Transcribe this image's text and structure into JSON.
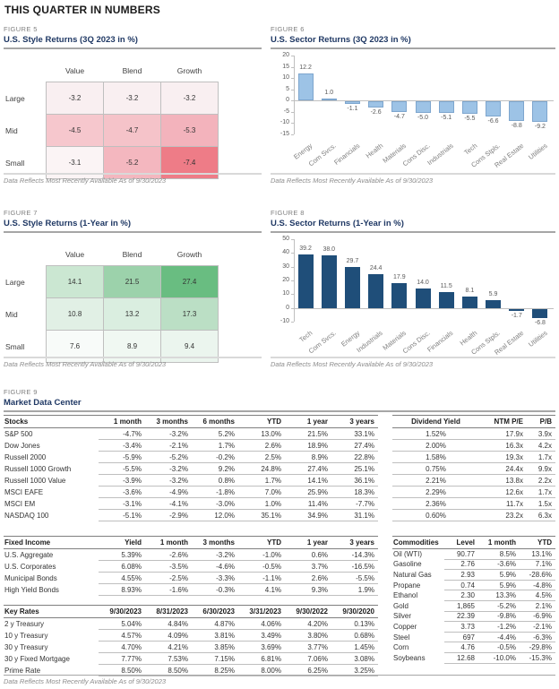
{
  "page": {
    "title": "THIS QUARTER IN NUMBERS"
  },
  "colors": {
    "title_navy": "#1F3864",
    "sector_3q_bar": "#9DC3E6",
    "sector_1y_bar": "#1F4E79",
    "heat_red_max": "#EE7C87",
    "heat_green_max": "#69BD81"
  },
  "figure5": {
    "label": "FIGURE 5",
    "title": "U.S. Style Returns (3Q 2023 in %)",
    "footnote": "Data Reflects Most Recently Available As of 9/30/2023",
    "grid": {
      "col_headers": [
        "Value",
        "Blend",
        "Growth"
      ],
      "row_headers": [
        "Large",
        "Mid",
        "Small"
      ],
      "rows": [
        [
          {
            "v": "-3.2",
            "color": "#F9EFF1"
          },
          {
            "v": "-3.2",
            "color": "#F9EFF1"
          },
          {
            "v": "-3.2",
            "color": "#F9EFF1"
          }
        ],
        [
          {
            "v": "-4.5",
            "color": "#F6C7CD"
          },
          {
            "v": "-4.7",
            "color": "#F5C3C9"
          },
          {
            "v": "-5.3",
            "color": "#F3B3BC"
          }
        ],
        [
          {
            "v": "-3.1",
            "color": "#FBF4F5"
          },
          {
            "v": "-5.2",
            "color": "#F4B7BF"
          },
          {
            "v": "-7.4",
            "color": "#EE7C87"
          }
        ]
      ]
    }
  },
  "figure6": {
    "label": "FIGURE 6",
    "title": "U.S. Sector Returns (3Q 2023 in %)",
    "footnote": "Data Reflects Most Recently Available As of 9/30/2023"
  },
  "figure7": {
    "label": "FIGURE 7",
    "title": "U.S. Style Returns (1-Year in %)",
    "footnote": "Data Reflects Most Recently Available As of 9/30/2023",
    "grid": {
      "col_headers": [
        "Value",
        "Blend",
        "Growth"
      ],
      "row_headers": [
        "Large",
        "Mid",
        "Small"
      ],
      "rows": [
        [
          {
            "v": "14.1",
            "color": "#CBE7D2"
          },
          {
            "v": "21.5",
            "color": "#9CD2AB"
          },
          {
            "v": "27.4",
            "color": "#69BD81"
          }
        ],
        [
          {
            "v": "10.8",
            "color": "#E1F0E5"
          },
          {
            "v": "13.2",
            "color": "#DAEEE0"
          },
          {
            "v": "17.3",
            "color": "#BBDFC5"
          }
        ],
        [
          {
            "v": "7.6",
            "color": "#F8FBF9"
          },
          {
            "v": "8.9",
            "color": "#F0F8F2"
          },
          {
            "v": "9.4",
            "color": "#EBF5EE"
          }
        ]
      ]
    }
  },
  "figure8": {
    "label": "FIGURE 8",
    "title": "U.S. Sector Returns (1-Year in %)",
    "footnote": "Data Reflects Most Recently Available As of 9/30/2023"
  },
  "chart_data": [
    {
      "type": "bar",
      "title": "U.S. Sector Returns (3Q 2023 in %)",
      "categories": [
        "Energy",
        "Com Svcs.",
        "Financials",
        "Health",
        "Materials",
        "Cons Disc.",
        "Industrials",
        "Tech",
        "Cons Stpls.",
        "Real Estate",
        "Utilities"
      ],
      "values": [
        12.2,
        1.0,
        -1.1,
        -2.6,
        -4.7,
        -5.0,
        -5.1,
        -5.5,
        -6.6,
        -8.8,
        -9.2
      ],
      "xlabel": "",
      "ylabel": "",
      "ylim": [
        -15,
        20
      ],
      "yticks": [
        20,
        15,
        10,
        5,
        0,
        -5,
        -10,
        -15
      ],
      "grid": false,
      "legend": "none",
      "bar_color": "#9DC3E6",
      "bar_border": "#7EA6CE"
    },
    {
      "type": "bar",
      "title": "U.S. Sector Returns (1-Year in %)",
      "categories": [
        "Tech",
        "Com Svcs.",
        "Energy",
        "Industrials",
        "Materials",
        "Cons Disc.",
        "Financials",
        "Health",
        "Cons Stpls.",
        "Real Estate",
        "Utilities"
      ],
      "values": [
        39.2,
        38.0,
        29.7,
        24.4,
        17.9,
        14.0,
        11.5,
        8.1,
        5.9,
        -1.7,
        -6.8
      ],
      "xlabel": "",
      "ylabel": "",
      "ylim": [
        -10,
        50
      ],
      "yticks": [
        50,
        40,
        30,
        20,
        10,
        0,
        -10
      ],
      "grid": false,
      "legend": "none",
      "bar_color": "#1F4E79",
      "bar_border": "#1F4E79"
    }
  ],
  "figure9": {
    "label": "FIGURE 9",
    "title": "Market Data Center",
    "footnote": "Data Reflects Most Recently Available As of 9/30/2023",
    "stocks": {
      "headers": [
        "Stocks",
        "1 month",
        "3 months",
        "6 months",
        "YTD",
        "1 year",
        "3 years"
      ],
      "rows": [
        [
          "S&P 500",
          "-4.7%",
          "-3.2%",
          "5.2%",
          "13.0%",
          "21.5%",
          "33.1%"
        ],
        [
          "Dow Jones",
          "-3.4%",
          "-2.1%",
          "1.7%",
          "2.6%",
          "18.9%",
          "27.4%"
        ],
        [
          "Russell 2000",
          "-5.9%",
          "-5.2%",
          "-0.2%",
          "2.5%",
          "8.9%",
          "22.8%"
        ],
        [
          "Russell 1000 Growth",
          "-5.5%",
          "-3.2%",
          "9.2%",
          "24.8%",
          "27.4%",
          "25.1%"
        ],
        [
          "Russell 1000 Value",
          "-3.9%",
          "-3.2%",
          "0.8%",
          "1.7%",
          "14.1%",
          "36.1%"
        ],
        [
          "MSCI EAFE",
          "-3.6%",
          "-4.9%",
          "-1.8%",
          "7.0%",
          "25.9%",
          "18.3%"
        ],
        [
          "MSCI EM",
          "-3.1%",
          "-4.1%",
          "-3.0%",
          "1.0%",
          "11.4%",
          "-7.7%"
        ],
        [
          "NASDAQ 100",
          "-5.1%",
          "-2.9%",
          "12.0%",
          "35.1%",
          "34.9%",
          "31.1%"
        ]
      ]
    },
    "valuation": {
      "headers": [
        "Dividend Yield",
        "NTM P/E",
        "P/B"
      ],
      "rows": [
        [
          "1.52%",
          "17.9x",
          "3.9x"
        ],
        [
          "2.00%",
          "16.3x",
          "4.2x"
        ],
        [
          "1.58%",
          "19.3x",
          "1.7x"
        ],
        [
          "0.75%",
          "24.4x",
          "9.9x"
        ],
        [
          "2.21%",
          "13.8x",
          "2.2x"
        ],
        [
          "2.29%",
          "12.6x",
          "1.7x"
        ],
        [
          "2.36%",
          "11.7x",
          "1.5x"
        ],
        [
          "0.60%",
          "23.2x",
          "6.3x"
        ]
      ]
    },
    "fixed_income": {
      "headers": [
        "Fixed Income",
        "Yield",
        "1 month",
        "3 months",
        "YTD",
        "1 year",
        "3 years"
      ],
      "rows": [
        [
          "U.S. Aggregate",
          "5.39%",
          "-2.6%",
          "-3.2%",
          "-1.0%",
          "0.6%",
          "-14.3%"
        ],
        [
          "U.S. Corporates",
          "6.08%",
          "-3.5%",
          "-4.6%",
          "-0.5%",
          "3.7%",
          "-16.5%"
        ],
        [
          "Municipal Bonds",
          "4.55%",
          "-2.5%",
          "-3.3%",
          "-1.1%",
          "2.6%",
          "-5.5%"
        ],
        [
          "High Yield Bonds",
          "8.93%",
          "-1.6%",
          "-0.3%",
          "4.1%",
          "9.3%",
          "1.9%"
        ]
      ]
    },
    "commodities": {
      "headers": [
        "Commodities",
        "Level",
        "1 month",
        "YTD"
      ],
      "rows": [
        [
          "Oil (WTI)",
          "90.77",
          "8.5%",
          "13.1%"
        ],
        [
          "Gasoline",
          "2.76",
          "-3.6%",
          "7.1%"
        ],
        [
          "Natural Gas",
          "2.93",
          "5.9%",
          "-28.6%"
        ],
        [
          "Propane",
          "0.74",
          "5.9%",
          "-4.8%"
        ],
        [
          "Ethanol",
          "2.30",
          "13.3%",
          "4.5%"
        ],
        [
          "Gold",
          "1,865",
          "-5.2%",
          "2.1%"
        ],
        [
          "Silver",
          "22.39",
          "-9.8%",
          "-6.9%"
        ],
        [
          "Copper",
          "3.73",
          "-1.2%",
          "-2.1%"
        ],
        [
          "Steel",
          "697",
          "-4.4%",
          "-6.3%"
        ],
        [
          "Corn",
          "4.76",
          "-0.5%",
          "-29.8%"
        ],
        [
          "Soybeans",
          "12.68",
          "-10.0%",
          "-15.3%"
        ]
      ]
    },
    "key_rates": {
      "headers": [
        "Key Rates",
        "9/30/2023",
        "8/31/2023",
        "6/30/2023",
        "3/31/2023",
        "9/30/2022",
        "9/30/2020"
      ],
      "rows": [
        [
          "2 y Treasury",
          "5.04%",
          "4.84%",
          "4.87%",
          "4.06%",
          "4.20%",
          "0.13%"
        ],
        [
          "10 y Treasury",
          "4.57%",
          "4.09%",
          "3.81%",
          "3.49%",
          "3.80%",
          "0.68%"
        ],
        [
          "30 y Treasury",
          "4.70%",
          "4.21%",
          "3.85%",
          "3.69%",
          "3.77%",
          "1.45%"
        ],
        [
          "30 y Fixed Mortgage",
          "7.77%",
          "7.53%",
          "7.15%",
          "6.81%",
          "7.06%",
          "3.08%"
        ],
        [
          "Prime Rate",
          "8.50%",
          "8.50%",
          "8.25%",
          "8.00%",
          "6.25%",
          "3.25%"
        ]
      ]
    }
  }
}
